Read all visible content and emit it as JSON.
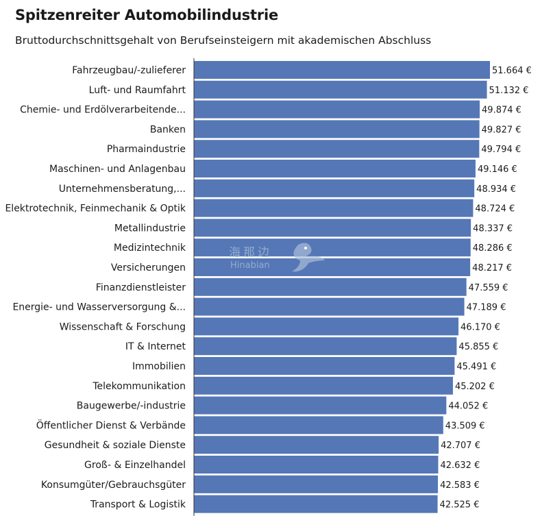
{
  "title": "Spitzenreiter Automobilindustrie",
  "subtitle": "Bruttodurchschnittsgehalt von Berufseinsteigern mit akademischen Abschluss",
  "watermark": {
    "cn": "海那边",
    "en": "Hinabian"
  },
  "colors": {
    "bar": "#5577b6",
    "axis": "#333333"
  },
  "chart_data": {
    "type": "bar",
    "orientation": "horizontal",
    "categories": [
      "Fahrzeugbau/-zulieferer",
      "Luft- und Raumfahrt",
      "Chemie- und Erdölverarbeitende...",
      "Banken",
      "Pharmaindustrie",
      "Maschinen- und Anlagenbau",
      "Unternehmensberatung,...",
      "Elektrotechnik, Feinmechanik & Optik",
      "Metallindustrie",
      "Medizintechnik",
      "Versicherungen",
      "Finanzdienstleister",
      "Energie- und Wasserversorgung &...",
      "Wissenschaft & Forschung",
      "IT & Internet",
      "Immobilien",
      "Telekommunikation",
      "Baugewerbe/-industrie",
      "Öffentlicher Dienst & Verbände",
      "Gesundheit & soziale Dienste",
      "Groß- & Einzelhandel",
      "Konsumgüter/Gebrauchsgüter",
      "Transport & Logistik"
    ],
    "values": [
      51664,
      51132,
      49874,
      49827,
      49794,
      49146,
      48934,
      48724,
      48337,
      48286,
      48217,
      47559,
      47189,
      46170,
      45855,
      45491,
      45202,
      44052,
      43509,
      42707,
      42632,
      42583,
      42525
    ],
    "value_labels": [
      "51.664 €",
      "51.132 €",
      "49.874 €",
      "49.827 €",
      "49.794 €",
      "49.146 €",
      "48.934 €",
      "48.724 €",
      "48.337 €",
      "48.286 €",
      "48.217 €",
      "47.559 €",
      "47.189 €",
      "46.170 €",
      "45.855 €",
      "45.491 €",
      "45.202 €",
      "44.052 €",
      "43.509 €",
      "42.707 €",
      "42.632 €",
      "42.583 €",
      "42.525 €"
    ],
    "xlim": [
      0,
      51664
    ],
    "grid": false,
    "legend": "none"
  }
}
